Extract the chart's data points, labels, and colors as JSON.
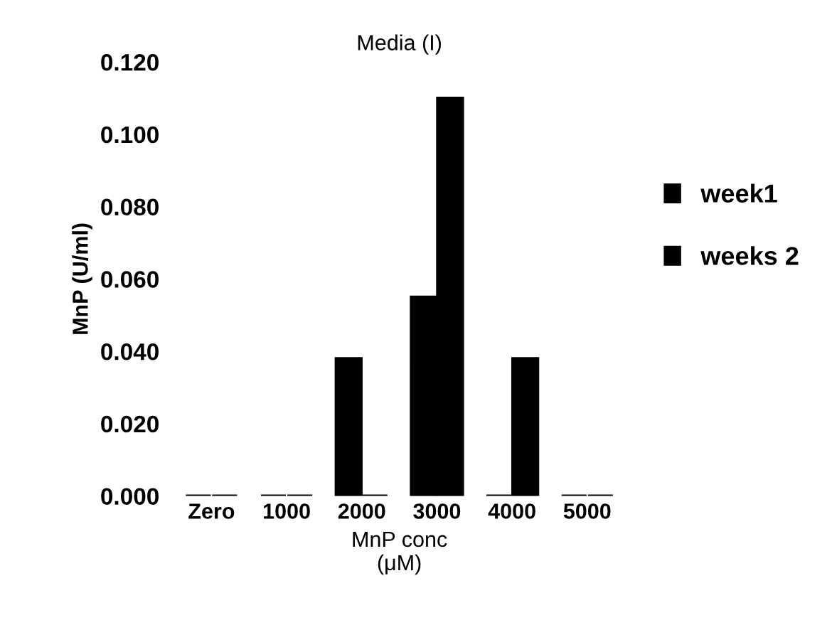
{
  "chart_data": {
    "type": "bar",
    "title": "Media (I)",
    "xlabel": "MnP conc\n(μM)",
    "ylabel": "MnP (U/ml)",
    "categories": [
      "Zero",
      "1000",
      "2000",
      "3000",
      "4000",
      "5000"
    ],
    "series": [
      {
        "name": "week1",
        "color": "#000000",
        "values": [
          0,
          0,
          0.038,
          0.055,
          0,
          0
        ]
      },
      {
        "name": "weeks 2",
        "color": "#000000",
        "values": [
          0,
          0,
          0,
          0.11,
          0.038,
          0
        ]
      }
    ],
    "ylim": [
      0,
      0.12
    ],
    "yticks": [
      {
        "value": 0,
        "label": "0.000"
      },
      {
        "value": 0.02,
        "label": "0.020"
      },
      {
        "value": 0.04,
        "label": "0.040"
      },
      {
        "value": 0.06,
        "label": "0.060"
      },
      {
        "value": 0.08,
        "label": "0.080"
      },
      {
        "value": 0.1,
        "label": "0.100"
      },
      {
        "value": 0.12,
        "label": "0.120"
      }
    ],
    "legend": "right",
    "grid": false
  }
}
